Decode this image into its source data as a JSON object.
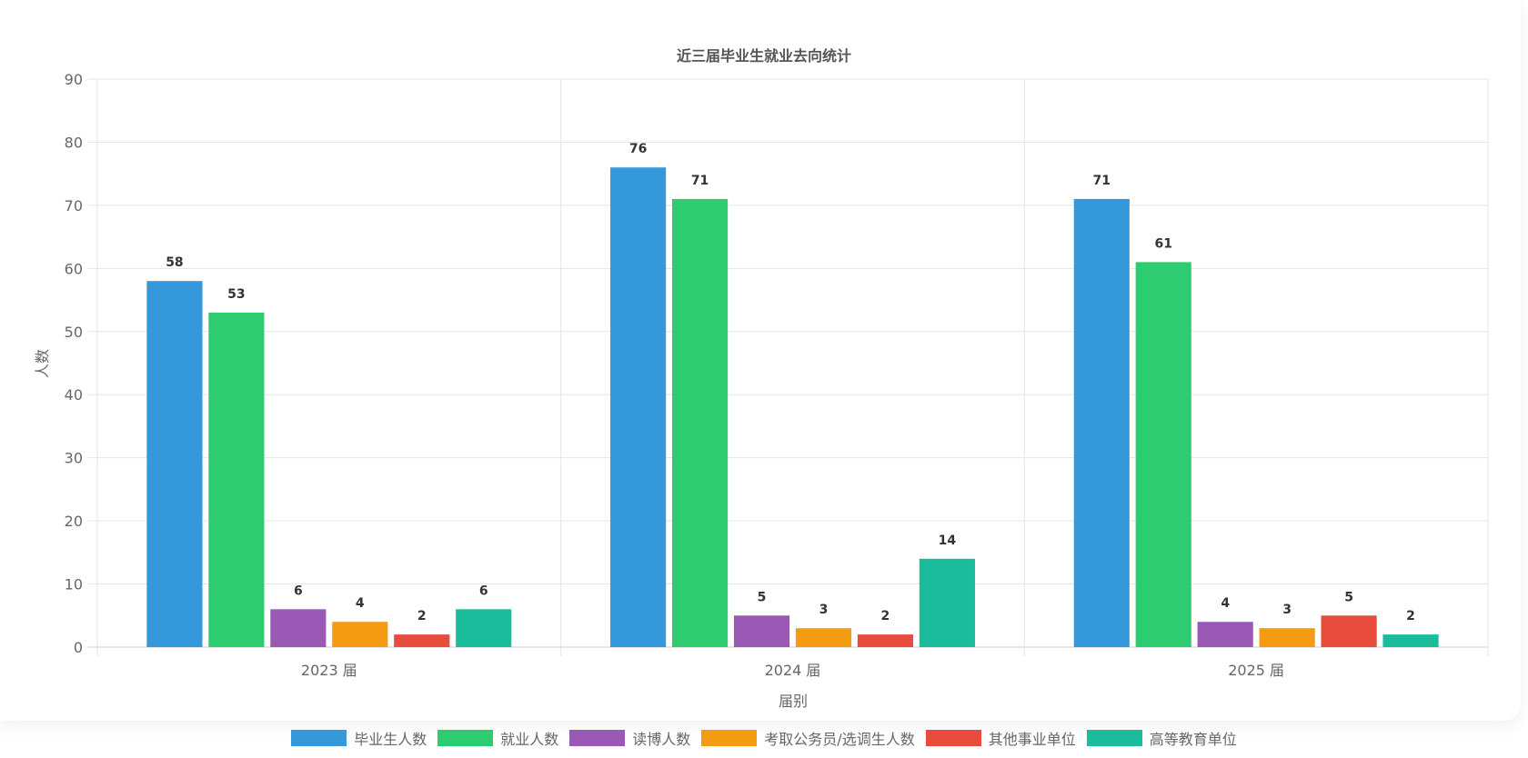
{
  "chart_data": {
    "type": "bar",
    "title": "近三届毕业生就业去向统计",
    "xlabel": "届别",
    "ylabel": "人数",
    "categories": [
      "2023 届",
      "2024 届",
      "2025 届"
    ],
    "ylim": [
      0,
      90
    ],
    "yticks": [
      0,
      10,
      20,
      30,
      40,
      50,
      60,
      70,
      80,
      90
    ],
    "grid": true,
    "legend_position": "bottom",
    "series": [
      {
        "name": "毕业生人数",
        "color": "#3498db",
        "values": [
          58,
          76,
          71
        ]
      },
      {
        "name": "就业人数",
        "color": "#2ecc71",
        "values": [
          53,
          71,
          61
        ]
      },
      {
        "name": "读博人数",
        "color": "#9b59b6",
        "values": [
          6,
          5,
          4
        ]
      },
      {
        "name": "考取公务员/选调生人数",
        "color": "#f39c12",
        "values": [
          4,
          3,
          3
        ]
      },
      {
        "name": "其他事业单位",
        "color": "#e74c3c",
        "values": [
          2,
          2,
          5
        ]
      },
      {
        "name": "高等教育单位",
        "color": "#1abc9c",
        "values": [
          6,
          14,
          2
        ]
      }
    ]
  }
}
